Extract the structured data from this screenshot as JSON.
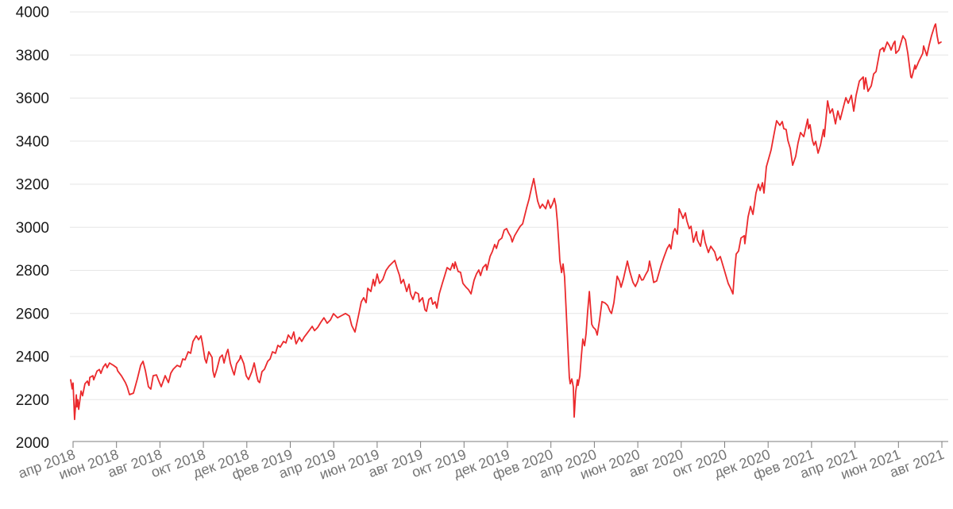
{
  "page": {
    "background": "#ffffff"
  },
  "chart_data": {
    "type": "line",
    "title": "",
    "legend": "none",
    "grid": "horizontal-only",
    "colors": {
      "line": "#eb2a2d",
      "gridline": "#e6e6e6",
      "axis": "#7d7d7d",
      "y_label": "#1a1a1a",
      "x_label": "#757575",
      "background": "#ffffff"
    },
    "y_axis": {
      "min": 2000,
      "max": 4000,
      "step": 200,
      "tick_labels": [
        "2000",
        "2200",
        "2400",
        "2600",
        "2800",
        "3000",
        "3200",
        "3400",
        "3600",
        "3800",
        "4000"
      ]
    },
    "x_axis": {
      "unit": "months_after_apr_2018",
      "months_per_tick": 2,
      "tick_labels": [
        "апр 2018",
        "июн 2018",
        "авг 2018",
        "окт 2018",
        "дек 2018",
        "фев 2019",
        "апр 2019",
        "июн 2019",
        "авг 2019",
        "окт 2019",
        "дек 2019",
        "фев 2020",
        "апр 2020",
        "июн 2020",
        "авг 2020",
        "окт 2020",
        "дек 2020",
        "фев 2021",
        "апр 2021",
        "июн 2021",
        "авг 2021"
      ]
    },
    "points": [
      [
        -0.11,
        2292
      ],
      [
        -0.04,
        2250
      ],
      [
        0.0,
        2277
      ],
      [
        0.07,
        2108
      ],
      [
        0.15,
        2222
      ],
      [
        0.18,
        2166
      ],
      [
        0.22,
        2200
      ],
      [
        0.26,
        2155
      ],
      [
        0.37,
        2240
      ],
      [
        0.44,
        2218
      ],
      [
        0.55,
        2274
      ],
      [
        0.66,
        2286
      ],
      [
        0.73,
        2266
      ],
      [
        0.77,
        2303
      ],
      [
        0.91,
        2311
      ],
      [
        0.95,
        2292
      ],
      [
        1.1,
        2332
      ],
      [
        1.21,
        2340
      ],
      [
        1.28,
        2322
      ],
      [
        1.39,
        2351
      ],
      [
        1.5,
        2366
      ],
      [
        1.57,
        2348
      ],
      [
        1.68,
        2370
      ],
      [
        1.86,
        2359
      ],
      [
        2.01,
        2348
      ],
      [
        2.05,
        2334
      ],
      [
        2.23,
        2310
      ],
      [
        2.41,
        2279
      ],
      [
        2.49,
        2260
      ],
      [
        2.6,
        2223
      ],
      [
        2.78,
        2230
      ],
      [
        2.96,
        2297
      ],
      [
        3.11,
        2359
      ],
      [
        3.22,
        2378
      ],
      [
        3.33,
        2334
      ],
      [
        3.47,
        2260
      ],
      [
        3.58,
        2249
      ],
      [
        3.69,
        2311
      ],
      [
        3.84,
        2315
      ],
      [
        3.95,
        2286
      ],
      [
        4.06,
        2260
      ],
      [
        4.24,
        2311
      ],
      [
        4.39,
        2279
      ],
      [
        4.5,
        2323
      ],
      [
        4.61,
        2341
      ],
      [
        4.79,
        2359
      ],
      [
        4.94,
        2352
      ],
      [
        5.05,
        2389
      ],
      [
        5.16,
        2385
      ],
      [
        5.3,
        2422
      ],
      [
        5.41,
        2415
      ],
      [
        5.52,
        2470
      ],
      [
        5.67,
        2496
      ],
      [
        5.78,
        2478
      ],
      [
        5.89,
        2496
      ],
      [
        5.96,
        2459
      ],
      [
        6.07,
        2389
      ],
      [
        6.14,
        2370
      ],
      [
        6.25,
        2422
      ],
      [
        6.4,
        2396
      ],
      [
        6.44,
        2334
      ],
      [
        6.51,
        2304
      ],
      [
        6.62,
        2341
      ],
      [
        6.76,
        2396
      ],
      [
        6.87,
        2407
      ],
      [
        6.95,
        2370
      ],
      [
        7.06,
        2415
      ],
      [
        7.13,
        2433
      ],
      [
        7.24,
        2370
      ],
      [
        7.35,
        2334
      ],
      [
        7.42,
        2315
      ],
      [
        7.53,
        2367
      ],
      [
        7.68,
        2389
      ],
      [
        7.71,
        2404
      ],
      [
        7.86,
        2367
      ],
      [
        7.97,
        2311
      ],
      [
        8.08,
        2293
      ],
      [
        8.23,
        2330
      ],
      [
        8.34,
        2370
      ],
      [
        8.45,
        2315
      ],
      [
        8.52,
        2286
      ],
      [
        8.59,
        2279
      ],
      [
        8.7,
        2330
      ],
      [
        8.81,
        2341
      ],
      [
        8.96,
        2378
      ],
      [
        9.07,
        2389
      ],
      [
        9.18,
        2422
      ],
      [
        9.32,
        2415
      ],
      [
        9.43,
        2452
      ],
      [
        9.54,
        2444
      ],
      [
        9.69,
        2470
      ],
      [
        9.8,
        2463
      ],
      [
        9.91,
        2500
      ],
      [
        10.05,
        2481
      ],
      [
        10.16,
        2514
      ],
      [
        10.24,
        2470
      ],
      [
        10.27,
        2459
      ],
      [
        10.42,
        2489
      ],
      [
        10.53,
        2470
      ],
      [
        10.64,
        2490
      ],
      [
        10.79,
        2510
      ],
      [
        10.9,
        2525
      ],
      [
        11.01,
        2540
      ],
      [
        11.12,
        2520
      ],
      [
        11.26,
        2535
      ],
      [
        11.41,
        2560
      ],
      [
        11.55,
        2580
      ],
      [
        11.7,
        2555
      ],
      [
        11.85,
        2570
      ],
      [
        11.99,
        2599
      ],
      [
        12.18,
        2580
      ],
      [
        12.36,
        2590
      ],
      [
        12.54,
        2600
      ],
      [
        12.72,
        2588
      ],
      [
        12.83,
        2544
      ],
      [
        12.98,
        2514
      ],
      [
        13.16,
        2599
      ],
      [
        13.27,
        2654
      ],
      [
        13.38,
        2673
      ],
      [
        13.49,
        2650
      ],
      [
        13.57,
        2717
      ],
      [
        13.71,
        2702
      ],
      [
        13.82,
        2758
      ],
      [
        13.89,
        2728
      ],
      [
        14.0,
        2783
      ],
      [
        14.11,
        2740
      ],
      [
        14.26,
        2758
      ],
      [
        14.41,
        2800
      ],
      [
        14.55,
        2820
      ],
      [
        14.7,
        2835
      ],
      [
        14.81,
        2846
      ],
      [
        14.92,
        2809
      ],
      [
        15.03,
        2776
      ],
      [
        15.1,
        2740
      ],
      [
        15.21,
        2758
      ],
      [
        15.36,
        2702
      ],
      [
        15.47,
        2736
      ],
      [
        15.54,
        2691
      ],
      [
        15.65,
        2665
      ],
      [
        15.76,
        2699
      ],
      [
        15.9,
        2691
      ],
      [
        15.94,
        2654
      ],
      [
        16.09,
        2673
      ],
      [
        16.2,
        2617
      ],
      [
        16.27,
        2610
      ],
      [
        16.38,
        2665
      ],
      [
        16.49,
        2673
      ],
      [
        16.56,
        2643
      ],
      [
        16.67,
        2654
      ],
      [
        16.75,
        2625
      ],
      [
        16.86,
        2691
      ],
      [
        17.0,
        2740
      ],
      [
        17.11,
        2776
      ],
      [
        17.22,
        2813
      ],
      [
        17.37,
        2802
      ],
      [
        17.48,
        2832
      ],
      [
        17.55,
        2809
      ],
      [
        17.59,
        2839
      ],
      [
        17.73,
        2795
      ],
      [
        17.84,
        2791
      ],
      [
        17.95,
        2740
      ],
      [
        18.1,
        2721
      ],
      [
        18.21,
        2710
      ],
      [
        18.32,
        2691
      ],
      [
        18.46,
        2754
      ],
      [
        18.57,
        2783
      ],
      [
        18.68,
        2802
      ],
      [
        18.76,
        2776
      ],
      [
        18.87,
        2813
      ],
      [
        19.01,
        2828
      ],
      [
        19.05,
        2802
      ],
      [
        19.2,
        2865
      ],
      [
        19.3,
        2887
      ],
      [
        19.41,
        2920
      ],
      [
        19.49,
        2902
      ],
      [
        19.6,
        2939
      ],
      [
        19.74,
        2950
      ],
      [
        19.85,
        2987
      ],
      [
        19.96,
        2994
      ],
      [
        20.04,
        2976
      ],
      [
        20.15,
        2957
      ],
      [
        20.22,
        2932
      ],
      [
        20.33,
        2961
      ],
      [
        20.48,
        2987
      ],
      [
        20.59,
        3005
      ],
      [
        20.7,
        3016
      ],
      [
        20.77,
        3046
      ],
      [
        20.88,
        3090
      ],
      [
        20.99,
        3130
      ],
      [
        21.1,
        3180
      ],
      [
        21.21,
        3226
      ],
      [
        21.32,
        3160
      ],
      [
        21.39,
        3122
      ],
      [
        21.5,
        3089
      ],
      [
        21.61,
        3107
      ],
      [
        21.76,
        3086
      ],
      [
        21.87,
        3126
      ],
      [
        21.98,
        3089
      ],
      [
        22.08,
        3110
      ],
      [
        22.16,
        3134
      ],
      [
        22.23,
        3100
      ],
      [
        22.3,
        3023
      ],
      [
        22.38,
        2900
      ],
      [
        22.41,
        2846
      ],
      [
        22.49,
        2790
      ],
      [
        22.56,
        2830
      ],
      [
        22.63,
        2770
      ],
      [
        22.71,
        2600
      ],
      [
        22.78,
        2450
      ],
      [
        22.85,
        2303
      ],
      [
        22.89,
        2274
      ],
      [
        22.96,
        2296
      ],
      [
        23.03,
        2259
      ],
      [
        23.07,
        2119
      ],
      [
        23.14,
        2237
      ],
      [
        23.22,
        2292
      ],
      [
        23.25,
        2266
      ],
      [
        23.33,
        2310
      ],
      [
        23.4,
        2400
      ],
      [
        23.47,
        2481
      ],
      [
        23.55,
        2450
      ],
      [
        23.62,
        2507
      ],
      [
        23.69,
        2606
      ],
      [
        23.77,
        2702
      ],
      [
        23.88,
        2550
      ],
      [
        23.95,
        2536
      ],
      [
        24.06,
        2525
      ],
      [
        24.13,
        2500
      ],
      [
        24.24,
        2570
      ],
      [
        24.35,
        2655
      ],
      [
        24.5,
        2648
      ],
      [
        24.61,
        2637
      ],
      [
        24.72,
        2610
      ],
      [
        24.79,
        2600
      ],
      [
        24.9,
        2650
      ],
      [
        25.05,
        2773
      ],
      [
        25.16,
        2750
      ],
      [
        25.23,
        2722
      ],
      [
        25.34,
        2760
      ],
      [
        25.52,
        2843
      ],
      [
        25.63,
        2795
      ],
      [
        25.78,
        2744
      ],
      [
        25.89,
        2725
      ],
      [
        26.0,
        2750
      ],
      [
        26.07,
        2780
      ],
      [
        26.18,
        2755
      ],
      [
        26.25,
        2757
      ],
      [
        26.36,
        2780
      ],
      [
        26.47,
        2800
      ],
      [
        26.54,
        2843
      ],
      [
        26.65,
        2790
      ],
      [
        26.73,
        2744
      ],
      [
        26.87,
        2751
      ],
      [
        26.98,
        2790
      ],
      [
        27.09,
        2828
      ],
      [
        27.2,
        2860
      ],
      [
        27.35,
        2901
      ],
      [
        27.46,
        2920
      ],
      [
        27.53,
        2900
      ],
      [
        27.64,
        2979
      ],
      [
        27.71,
        2994
      ],
      [
        27.82,
        2968
      ],
      [
        27.9,
        3086
      ],
      [
        28.01,
        3060
      ],
      [
        28.08,
        3041
      ],
      [
        28.19,
        3067
      ],
      [
        28.26,
        3030
      ],
      [
        28.37,
        2994
      ],
      [
        28.45,
        3005
      ],
      [
        28.56,
        2931
      ],
      [
        28.7,
        2979
      ],
      [
        28.74,
        2942
      ],
      [
        28.89,
        2912
      ],
      [
        28.92,
        2931
      ],
      [
        29.0,
        2986
      ],
      [
        29.1,
        2931
      ],
      [
        29.25,
        2883
      ],
      [
        29.36,
        2912
      ],
      [
        29.54,
        2886
      ],
      [
        29.65,
        2846
      ],
      [
        29.8,
        2864
      ],
      [
        29.98,
        2802
      ],
      [
        30.16,
        2740
      ],
      [
        30.27,
        2717
      ],
      [
        30.38,
        2691
      ],
      [
        30.46,
        2800
      ],
      [
        30.53,
        2876
      ],
      [
        30.64,
        2890
      ],
      [
        30.75,
        2950
      ],
      [
        30.9,
        2961
      ],
      [
        30.93,
        2924
      ],
      [
        31.08,
        3049
      ],
      [
        31.19,
        3097
      ],
      [
        31.3,
        3060
      ],
      [
        31.44,
        3159
      ],
      [
        31.55,
        3200
      ],
      [
        31.63,
        3171
      ],
      [
        31.74,
        3207
      ],
      [
        31.81,
        3159
      ],
      [
        31.92,
        3281
      ],
      [
        32.03,
        3320
      ],
      [
        32.14,
        3360
      ],
      [
        32.25,
        3420
      ],
      [
        32.39,
        3495
      ],
      [
        32.54,
        3473
      ],
      [
        32.65,
        3491
      ],
      [
        32.72,
        3458
      ],
      [
        32.83,
        3454
      ],
      [
        32.91,
        3403
      ],
      [
        33.02,
        3366
      ],
      [
        33.13,
        3288
      ],
      [
        33.27,
        3329
      ],
      [
        33.38,
        3392
      ],
      [
        33.49,
        3440
      ],
      [
        33.64,
        3421
      ],
      [
        33.82,
        3502
      ],
      [
        33.86,
        3458
      ],
      [
        33.93,
        3476
      ],
      [
        34.04,
        3403
      ],
      [
        34.11,
        3381
      ],
      [
        34.19,
        3399
      ],
      [
        34.3,
        3344
      ],
      [
        34.41,
        3381
      ],
      [
        34.55,
        3454
      ],
      [
        34.59,
        3421
      ],
      [
        34.74,
        3587
      ],
      [
        34.85,
        3530
      ],
      [
        34.96,
        3550
      ],
      [
        35.1,
        3480
      ],
      [
        35.21,
        3540
      ],
      [
        35.32,
        3500
      ],
      [
        35.47,
        3560
      ],
      [
        35.58,
        3602
      ],
      [
        35.69,
        3576
      ],
      [
        35.83,
        3613
      ],
      [
        35.94,
        3539
      ],
      [
        36.05,
        3613
      ],
      [
        36.2,
        3679
      ],
      [
        36.38,
        3698
      ],
      [
        36.42,
        3642
      ],
      [
        36.49,
        3694
      ],
      [
        36.6,
        3631
      ],
      [
        36.75,
        3657
      ],
      [
        36.86,
        3712
      ],
      [
        36.97,
        3723
      ],
      [
        37.15,
        3823
      ],
      [
        37.29,
        3834
      ],
      [
        37.33,
        3816
      ],
      [
        37.48,
        3860
      ],
      [
        37.59,
        3842
      ],
      [
        37.66,
        3823
      ],
      [
        37.77,
        3853
      ],
      [
        37.84,
        3864
      ],
      [
        37.88,
        3808
      ],
      [
        38.02,
        3823
      ],
      [
        38.21,
        3889
      ],
      [
        38.24,
        3882
      ],
      [
        38.32,
        3871
      ],
      [
        38.43,
        3808
      ],
      [
        38.57,
        3698
      ],
      [
        38.61,
        3694
      ],
      [
        38.76,
        3753
      ],
      [
        38.79,
        3735
      ],
      [
        38.94,
        3771
      ],
      [
        39.12,
        3808
      ],
      [
        39.16,
        3842
      ],
      [
        39.31,
        3797
      ],
      [
        39.41,
        3845
      ],
      [
        39.52,
        3889
      ],
      [
        39.67,
        3937
      ],
      [
        39.71,
        3944
      ],
      [
        39.78,
        3889
      ],
      [
        39.85,
        3853
      ],
      [
        39.96,
        3860
      ]
    ]
  }
}
